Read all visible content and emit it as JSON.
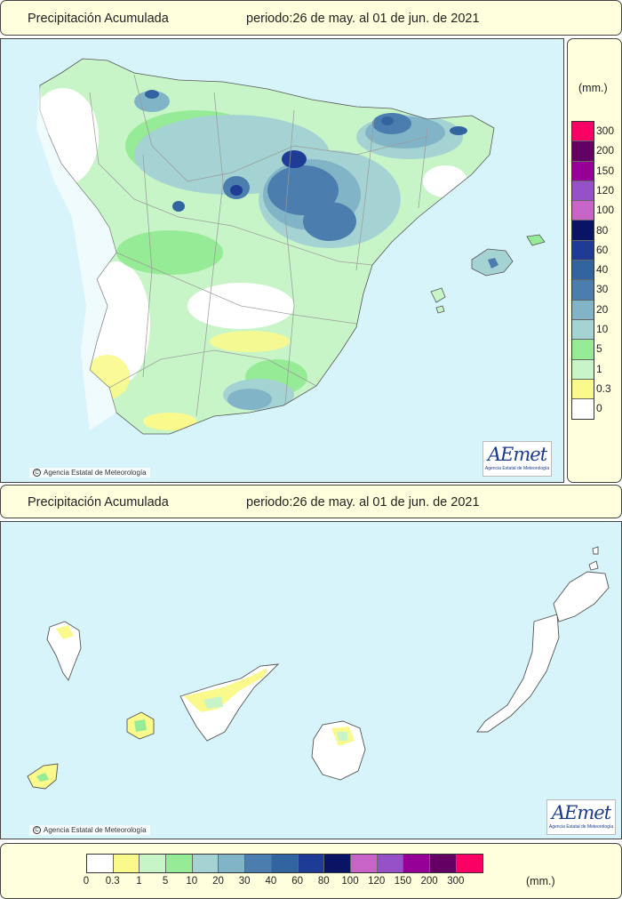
{
  "top_title": {
    "name": "Precipitación Acumulada",
    "period": "periodo:26 de may. al 01 de jun. de 2021"
  },
  "bottom_title": {
    "name": "Precipitación Acumulada",
    "period": "periodo:26 de may. al 01 de jun. de 2021"
  },
  "credit": {
    "icon_name": "copyright-icon",
    "icon_glyph": "C",
    "text": "Agencia Estatal de Meteorología"
  },
  "logo": {
    "text": "AEmet",
    "subtitle": "Agencia Estatal de Meteorología"
  },
  "legend": {
    "units": "(mm.)",
    "thresholds": [
      "0",
      "0.3",
      "1",
      "5",
      "10",
      "20",
      "30",
      "40",
      "60",
      "80",
      "100",
      "120",
      "150",
      "200",
      "300"
    ],
    "colors": [
      "#ffffff",
      "#fafa8c",
      "#c8f5c8",
      "#96eb96",
      "#a5d2d2",
      "#82b4c8",
      "#4b7daf",
      "#3264a0",
      "#1e3c96",
      "#0a1464",
      "#c864c8",
      "#9650c8",
      "#960096",
      "#640064",
      "#fa0064"
    ]
  },
  "colors": {
    "sea": "#d8f4fb",
    "panel": "#ffffdd",
    "border": "#444444",
    "province_line": "#999999"
  }
}
